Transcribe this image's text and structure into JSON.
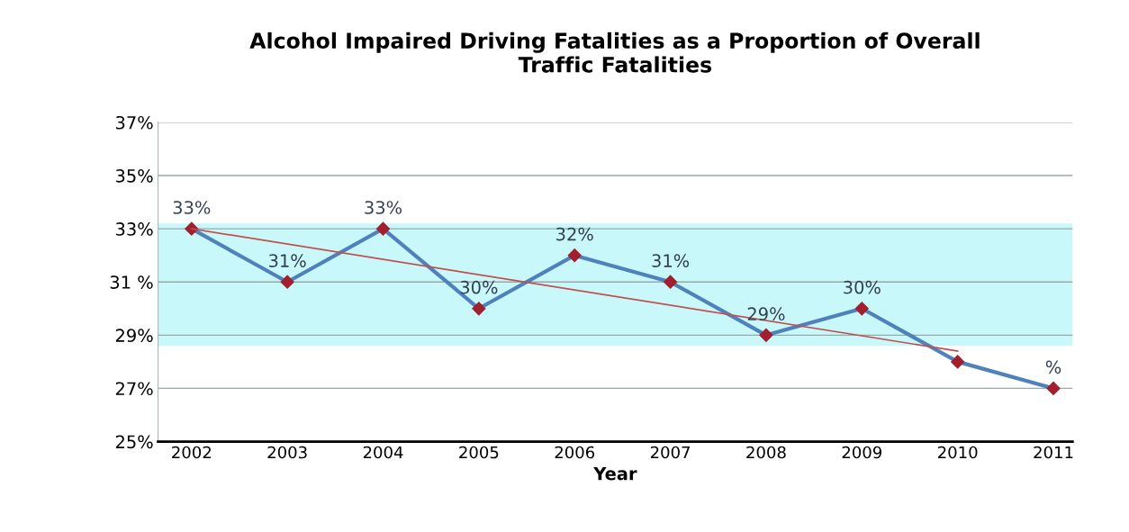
{
  "chart_data": {
    "type": "line",
    "title": "Alcohol Impaired Driving Fatalities as a Proportion of Overall\nTraffic Fatalities",
    "xlabel": "Year",
    "categories": [
      "2002",
      "2003",
      "2004",
      "2005",
      "2006",
      "2007",
      "2008",
      "2009",
      "2010",
      "2011"
    ],
    "series": [
      {
        "color": "#4f81bd",
        "marker": "diamond",
        "values": [
          33,
          31,
          33,
          30,
          32,
          31,
          29,
          30,
          28,
          27
        ],
        "value_labels": [
          "33%",
          "31%",
          "33%",
          "30%",
          "32%",
          "31%",
          "29%",
          "30%",
          null,
          "%"
        ]
      },
      {
        "type": "line",
        "color": "#c0504d",
        "values": [
          33,
          null,
          null,
          null,
          null,
          null,
          null,
          null,
          28.4,
          null
        ]
      }
    ],
    "ylim": [
      25,
      37
    ],
    "yticks": [
      {
        "value": 25,
        "label": "25%"
      },
      {
        "value": 27,
        "label": "27%"
      },
      {
        "value": 29,
        "label": "29%"
      },
      {
        "value": 31,
        "label": "31 %"
      },
      {
        "value": 33,
        "label": "33%"
      },
      {
        "value": 35,
        "label": "35%"
      },
      {
        "value": 37,
        "label": "37%"
      }
    ],
    "bands": [
      {
        "axis": "y",
        "from": 28.6,
        "to": 33.2,
        "color": "#c8f8fa"
      }
    ],
    "grid": "y"
  }
}
